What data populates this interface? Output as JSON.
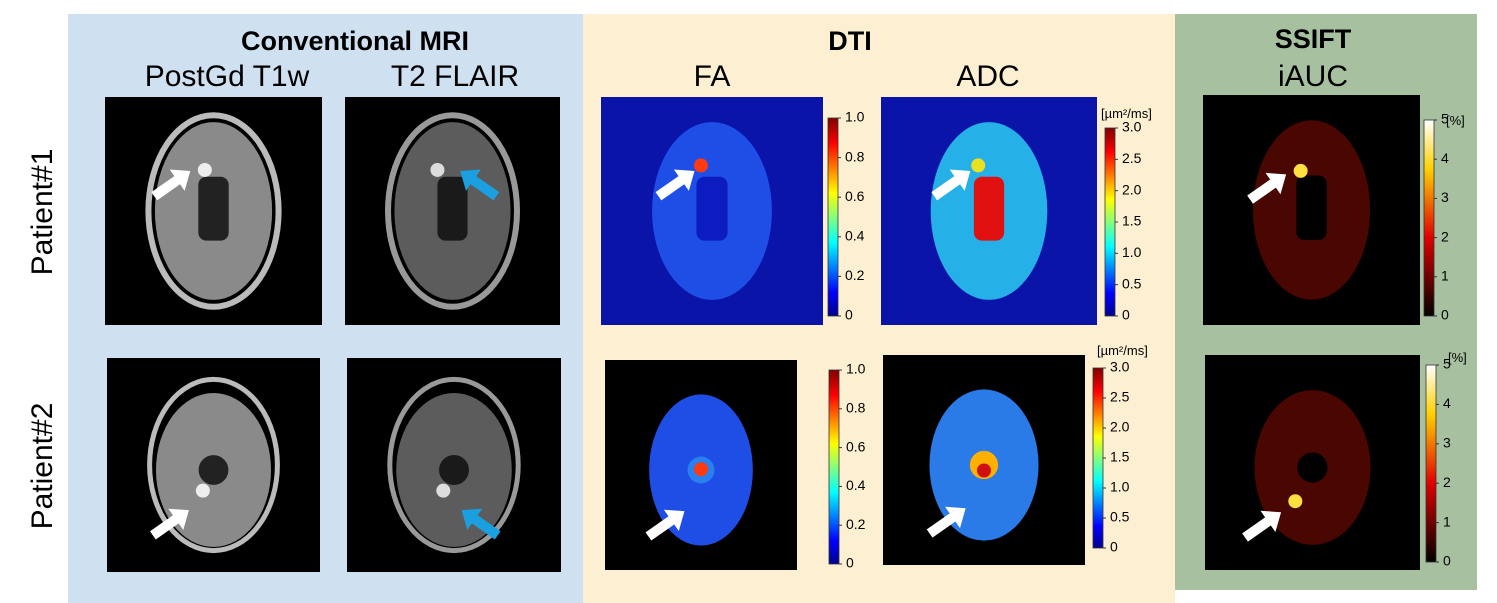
{
  "sections": [
    {
      "title": "Conventional MRI",
      "columns": [
        "PostGd T1w",
        "T2 FLAIR"
      ]
    },
    {
      "title": "DTI",
      "columns": [
        "FA",
        "ADC"
      ]
    },
    {
      "title": "SSIFT",
      "columns": [
        "iAUC"
      ]
    }
  ],
  "rows": [
    "Patient#1",
    "Patient#2"
  ],
  "colorbars": {
    "fa": {
      "ticks": [
        "1.0",
        "0.8",
        "0.6",
        "0.4",
        "0.2",
        "0"
      ]
    },
    "adc": {
      "unit": "[µm²/ms]",
      "ticks": [
        "3.0",
        "2.5",
        "2.0",
        "1.5",
        "1.0",
        "0.5",
        "0"
      ]
    },
    "iauc": {
      "unit": "[%]",
      "ticks": [
        "5",
        "4",
        "3",
        "2",
        "1",
        "0"
      ]
    }
  }
}
